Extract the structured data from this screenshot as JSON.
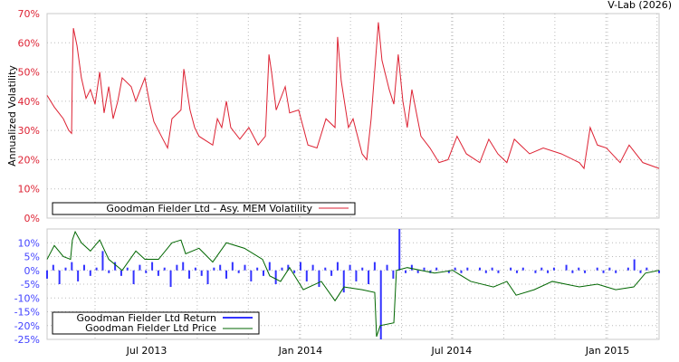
{
  "credit": "V-Lab (2026)",
  "colors": {
    "vol": "#dd2233",
    "ret": "#3333ff",
    "price": "#006600",
    "vol_ticks": "#dd2233",
    "ret_ticks": "#4444ff"
  },
  "chart_data": [
    {
      "type": "line",
      "ylabel": "Annualized Volatility",
      "ylim": [
        0,
        70
      ],
      "yticks": [
        "0%",
        "10%",
        "20%",
        "30%",
        "40%",
        "50%",
        "60%",
        "70%"
      ],
      "x_unit": "months since Mar 2013",
      "xlim": [
        0,
        23.72
      ],
      "legend": {
        "placement": "bottom-left",
        "entries": [
          "Goodman Fielder Ltd - Asy. MEM Volatility"
        ]
      },
      "series": [
        {
          "name": "Goodman Fielder Ltd - Asy. MEM Volatility",
          "points": [
            [
              0,
              42
            ],
            [
              0.28,
              38
            ],
            [
              0.63,
              34
            ],
            [
              0.84,
              30
            ],
            [
              0.95,
              29
            ],
            [
              0.98,
              50
            ],
            [
              1.02,
              65
            ],
            [
              1.16,
              59
            ],
            [
              1.33,
              48
            ],
            [
              1.51,
              41
            ],
            [
              1.68,
              44
            ],
            [
              1.86,
              39
            ],
            [
              2.04,
              50
            ],
            [
              2.21,
              36
            ],
            [
              2.39,
              45
            ],
            [
              2.56,
              34
            ],
            [
              2.74,
              40
            ],
            [
              2.91,
              48
            ],
            [
              3.26,
              45
            ],
            [
              3.44,
              40
            ],
            [
              3.79,
              48
            ],
            [
              3.96,
              40
            ],
            [
              4.14,
              33
            ],
            [
              4.49,
              27
            ],
            [
              4.67,
              24
            ],
            [
              4.84,
              34
            ],
            [
              5.19,
              37
            ],
            [
              5.3,
              51
            ],
            [
              5.54,
              37
            ],
            [
              5.72,
              31
            ],
            [
              5.89,
              28
            ],
            [
              6.42,
              25
            ],
            [
              6.6,
              34
            ],
            [
              6.77,
              31
            ],
            [
              6.95,
              40
            ],
            [
              7.12,
              31
            ],
            [
              7.47,
              27
            ],
            [
              7.82,
              31
            ],
            [
              8.18,
              25
            ],
            [
              8.46,
              28
            ],
            [
              8.6,
              56
            ],
            [
              8.7,
              50
            ],
            [
              8.88,
              37
            ],
            [
              9.23,
              45
            ],
            [
              9.4,
              36
            ],
            [
              9.75,
              37
            ],
            [
              10.11,
              25
            ],
            [
              10.46,
              24
            ],
            [
              10.81,
              34
            ],
            [
              11.16,
              31
            ],
            [
              11.26,
              62
            ],
            [
              11.4,
              47
            ],
            [
              11.68,
              31
            ],
            [
              11.86,
              34
            ],
            [
              12.21,
              22
            ],
            [
              12.39,
              20
            ],
            [
              12.56,
              34
            ],
            [
              12.84,
              67
            ],
            [
              12.98,
              54
            ],
            [
              13.26,
              44
            ],
            [
              13.44,
              39
            ],
            [
              13.61,
              56
            ],
            [
              13.79,
              40
            ],
            [
              13.96,
              31
            ],
            [
              14.14,
              44
            ],
            [
              14.49,
              28
            ],
            [
              14.84,
              24
            ],
            [
              15.19,
              19
            ],
            [
              15.54,
              20
            ],
            [
              15.89,
              28
            ],
            [
              16.25,
              22
            ],
            [
              16.77,
              19
            ],
            [
              17.12,
              27
            ],
            [
              17.47,
              22
            ],
            [
              17.82,
              19
            ],
            [
              18.11,
              27
            ],
            [
              18.7,
              22
            ],
            [
              19.23,
              24
            ],
            [
              19.93,
              22
            ],
            [
              20.63,
              19
            ],
            [
              20.81,
              17
            ],
            [
              21.05,
              31
            ],
            [
              21.33,
              25
            ],
            [
              21.68,
              24
            ],
            [
              22.21,
              19
            ],
            [
              22.56,
              25
            ],
            [
              23.09,
              19
            ],
            [
              23.72,
              17
            ]
          ]
        }
      ]
    },
    {
      "type": "line",
      "ylim": [
        -25,
        15
      ],
      "yticks": [
        "-25%",
        "-20%",
        "-15%",
        "-10%",
        "-5%",
        "0%",
        "5%",
        "10%"
      ],
      "xlim": [
        0,
        23.72
      ],
      "xticks": [
        {
          "label": "Jul 2013",
          "x": 3.86
        },
        {
          "label": "Jan 2014",
          "x": 9.82
        },
        {
          "label": "Jul 2014",
          "x": 15.68
        },
        {
          "label": "Jan 2015",
          "x": 21.72
        }
      ],
      "legend": {
        "placement": "bottom-left",
        "entries": [
          "Goodman Fielder Ltd Return",
          "Goodman Fielder Ltd Price"
        ]
      },
      "returns": [
        -3,
        2,
        -5,
        1,
        3,
        -4,
        2,
        -2,
        1,
        7,
        -1,
        3,
        -2,
        1,
        -5,
        2,
        -1,
        3,
        -2,
        1,
        -6,
        2,
        3,
        -3,
        1,
        -2,
        -5,
        1,
        2,
        -3,
        3,
        -1,
        2,
        -4,
        1,
        -2,
        3,
        -5,
        1,
        2,
        -1,
        3,
        -4,
        2,
        -6,
        1,
        -2,
        3,
        -8,
        2,
        -4,
        1,
        -5,
        3,
        -25,
        2,
        -3,
        15,
        -1,
        2,
        -1,
        1,
        -1,
        1,
        0,
        -1,
        1,
        -1,
        1,
        0,
        1,
        -1,
        1,
        -1,
        0,
        1,
        -1,
        1,
        0,
        -1,
        1,
        -1,
        1,
        0,
        2,
        -1,
        1,
        -1,
        0,
        1,
        -1,
        1,
        -1,
        0,
        1,
        4,
        -1,
        1,
        0,
        -1
      ],
      "price": [
        [
          0,
          4
        ],
        [
          0.28,
          9
        ],
        [
          0.63,
          5
        ],
        [
          0.91,
          4
        ],
        [
          0.98,
          11
        ],
        [
          1.09,
          14
        ],
        [
          1.33,
          10
        ],
        [
          1.68,
          7
        ],
        [
          2.04,
          11
        ],
        [
          2.39,
          4
        ],
        [
          2.91,
          0
        ],
        [
          3.44,
          7
        ],
        [
          3.79,
          4
        ],
        [
          4.32,
          4
        ],
        [
          4.84,
          10
        ],
        [
          5.19,
          11
        ],
        [
          5.37,
          6
        ],
        [
          5.89,
          8
        ],
        [
          6.42,
          3
        ],
        [
          6.95,
          10
        ],
        [
          7.65,
          8
        ],
        [
          8.35,
          4
        ],
        [
          8.63,
          -2
        ],
        [
          9.05,
          -4
        ],
        [
          9.4,
          1
        ],
        [
          9.93,
          -7
        ],
        [
          10.63,
          -4
        ],
        [
          11.16,
          -11
        ],
        [
          11.51,
          -6
        ],
        [
          12.21,
          -7
        ],
        [
          12.7,
          -8
        ],
        [
          12.77,
          -24
        ],
        [
          12.91,
          -20
        ],
        [
          13.44,
          -19
        ],
        [
          13.54,
          0
        ],
        [
          13.96,
          1
        ],
        [
          15.02,
          -1
        ],
        [
          15.72,
          0
        ],
        [
          16.42,
          -4
        ],
        [
          17.3,
          -6
        ],
        [
          17.82,
          -4
        ],
        [
          18.18,
          -9
        ],
        [
          18.88,
          -7
        ],
        [
          19.58,
          -4
        ],
        [
          20.63,
          -6
        ],
        [
          21.33,
          -5
        ],
        [
          22.04,
          -7
        ],
        [
          22.74,
          -6
        ],
        [
          23.19,
          -1
        ],
        [
          23.72,
          0
        ]
      ]
    }
  ]
}
